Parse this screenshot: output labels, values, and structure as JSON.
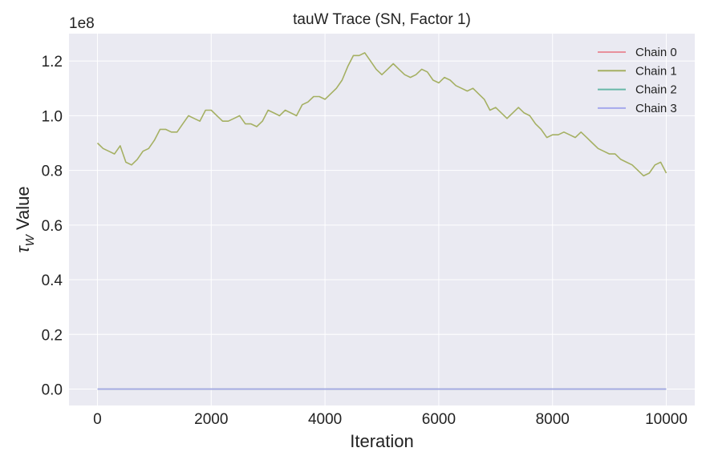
{
  "chart_data": {
    "type": "line",
    "title": "tauW Trace (SN, Factor 1)",
    "xlabel": "Iteration",
    "ylabel_symbol": "τ",
    "ylabel_subscript": "W",
    "ylabel_suffix": " Value",
    "y_scale_label": "1e8",
    "y_multiplier": 100000000,
    "xlim": [
      -500,
      10500
    ],
    "ylim": [
      -0.06,
      1.3
    ],
    "x_ticks": [
      0,
      2000,
      4000,
      6000,
      8000,
      10000
    ],
    "x_tick_labels": [
      "0",
      "2000",
      "4000",
      "6000",
      "8000",
      "10000"
    ],
    "y_ticks": [
      0.0,
      0.2,
      0.4,
      0.6,
      0.8,
      1.0,
      1.2
    ],
    "y_tick_labels": [
      "0.0",
      "0.2",
      "0.4",
      "0.6",
      "0.8",
      "1.0",
      "1.2"
    ],
    "grid": true,
    "background": "#eaeaf2",
    "legend_position": "top-right",
    "series": [
      {
        "name": "Chain 0",
        "color": "#e8909c",
        "x": [
          0,
          10000
        ],
        "y": [
          0.0,
          0.0
        ]
      },
      {
        "name": "Chain 1",
        "color": "#a5b063",
        "x": [
          0,
          100,
          200,
          300,
          400,
          500,
          600,
          700,
          800,
          900,
          1000,
          1100,
          1200,
          1300,
          1400,
          1500,
          1600,
          1700,
          1800,
          1900,
          2000,
          2100,
          2200,
          2300,
          2400,
          2500,
          2600,
          2700,
          2800,
          2900,
          3000,
          3100,
          3200,
          3300,
          3400,
          3500,
          3600,
          3700,
          3800,
          3900,
          4000,
          4100,
          4200,
          4300,
          4400,
          4500,
          4600,
          4700,
          4800,
          4900,
          5000,
          5100,
          5200,
          5300,
          5400,
          5500,
          5600,
          5700,
          5800,
          5900,
          6000,
          6100,
          6200,
          6300,
          6400,
          6500,
          6600,
          6700,
          6800,
          6900,
          7000,
          7100,
          7200,
          7300,
          7400,
          7500,
          7600,
          7700,
          7800,
          7900,
          8000,
          8100,
          8200,
          8300,
          8400,
          8500,
          8600,
          8700,
          8800,
          8900,
          9000,
          9100,
          9200,
          9300,
          9400,
          9500,
          9600,
          9700,
          9800,
          9900,
          10000
        ],
        "y": [
          0.9,
          0.88,
          0.87,
          0.86,
          0.89,
          0.83,
          0.82,
          0.84,
          0.87,
          0.88,
          0.91,
          0.95,
          0.95,
          0.94,
          0.94,
          0.97,
          1.0,
          0.99,
          0.98,
          1.02,
          1.02,
          1.0,
          0.98,
          0.98,
          0.99,
          1.0,
          0.97,
          0.97,
          0.96,
          0.98,
          1.02,
          1.01,
          1.0,
          1.02,
          1.01,
          1.0,
          1.04,
          1.05,
          1.07,
          1.07,
          1.06,
          1.08,
          1.1,
          1.13,
          1.18,
          1.22,
          1.22,
          1.23,
          1.2,
          1.17,
          1.15,
          1.17,
          1.19,
          1.17,
          1.15,
          1.14,
          1.15,
          1.17,
          1.16,
          1.13,
          1.12,
          1.14,
          1.13,
          1.11,
          1.1,
          1.09,
          1.1,
          1.08,
          1.06,
          1.02,
          1.03,
          1.01,
          0.99,
          1.01,
          1.03,
          1.01,
          1.0,
          0.97,
          0.95,
          0.92,
          0.93,
          0.93,
          0.94,
          0.93,
          0.92,
          0.94,
          0.92,
          0.9,
          0.88,
          0.87,
          0.86,
          0.86,
          0.84,
          0.83,
          0.82,
          0.8,
          0.78,
          0.79,
          0.82,
          0.83,
          0.79
        ]
      },
      {
        "name": "Chain 2",
        "color": "#68b8a8",
        "x": [
          0,
          10000
        ],
        "y": [
          0.0,
          0.0
        ]
      },
      {
        "name": "Chain 3",
        "color": "#a5a8ec",
        "x": [
          0,
          10000
        ],
        "y": [
          0.0,
          0.0
        ]
      }
    ]
  }
}
